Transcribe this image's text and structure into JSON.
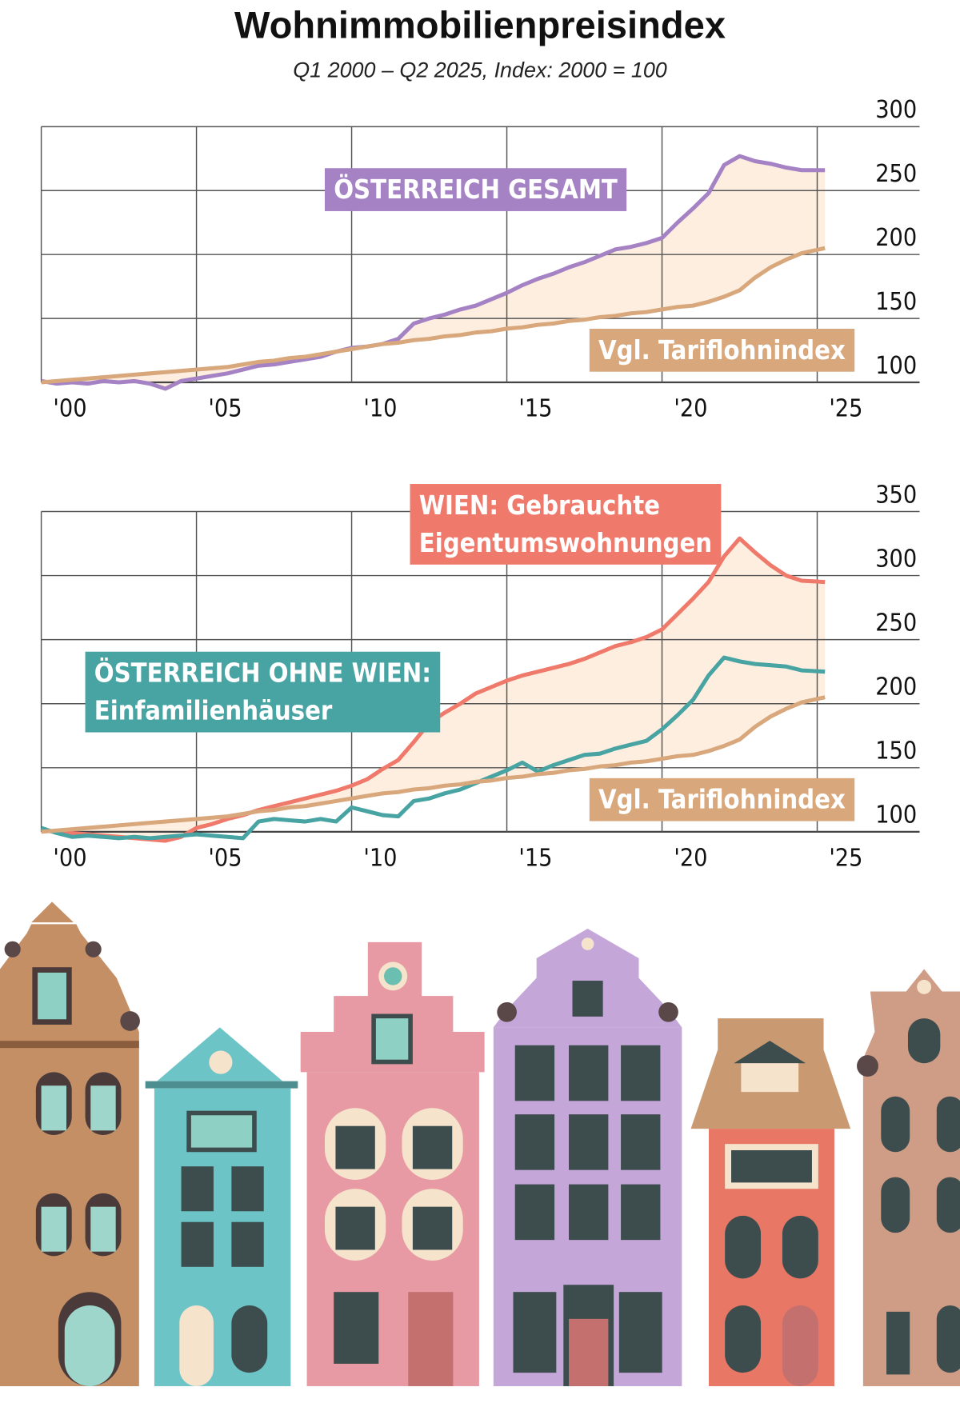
{
  "header": {
    "title": "Wohnimmobilienpreisindex",
    "subtitle": "Q1 2000 – Q2 2025, Index: 2000 = 100"
  },
  "chart_data": [
    {
      "type": "line",
      "x": [
        2000,
        2000.5,
        2001,
        2001.5,
        2002,
        2002.5,
        2003,
        2003.5,
        2004,
        2004.5,
        2005,
        2005.5,
        2006,
        2006.5,
        2007,
        2007.5,
        2008,
        2008.5,
        2009,
        2009.5,
        2010,
        2010.5,
        2011,
        2011.5,
        2012,
        2012.5,
        2013,
        2013.5,
        2014,
        2014.5,
        2015,
        2015.5,
        2016,
        2016.5,
        2017,
        2017.5,
        2018,
        2018.5,
        2019,
        2019.5,
        2020,
        2020.5,
        2021,
        2021.5,
        2022,
        2022.5,
        2023,
        2023.5,
        2024,
        2024.5,
        2025.25
      ],
      "series": [
        {
          "name": "ÖSTERREICH GESAMT",
          "color": "#a482c4",
          "values": [
            101,
            99,
            100,
            99,
            101,
            100,
            101,
            99,
            95,
            101,
            103,
            105,
            107,
            110,
            113,
            114,
            116,
            118,
            120,
            124,
            127,
            128,
            130,
            134,
            146,
            150,
            153,
            157,
            160,
            165,
            170,
            176,
            181,
            185,
            190,
            194,
            199,
            204,
            206,
            209,
            213,
            225,
            236,
            248,
            270,
            277,
            273,
            271,
            268,
            266,
            266
          ]
        },
        {
          "name": "Vgl. Tariflohnindex",
          "color": "#d9a77c",
          "values": [
            100,
            101,
            102,
            103,
            104,
            105,
            106,
            107,
            108,
            109,
            110,
            111,
            112,
            114,
            116,
            117,
            119,
            120,
            122,
            124,
            126,
            128,
            130,
            131,
            133,
            134,
            136,
            137,
            139,
            140,
            142,
            143,
            145,
            146,
            148,
            149,
            151,
            152,
            154,
            155,
            157,
            159,
            160,
            163,
            167,
            172,
            182,
            190,
            196,
            201,
            205
          ]
        }
      ],
      "xlim": [
        2000,
        2028.3
      ],
      "xticks": [
        {
          "value": 2000,
          "label": "'00"
        },
        {
          "value": 2005,
          "label": "'05"
        },
        {
          "value": 2010,
          "label": "'10"
        },
        {
          "value": 2015,
          "label": "'15"
        },
        {
          "value": 2020,
          "label": "'20"
        },
        {
          "value": 2025,
          "label": "'25"
        }
      ],
      "ylim": [
        100,
        300
      ],
      "yticks": [
        100,
        150,
        200,
        250,
        300
      ],
      "grid": true
    },
    {
      "type": "line",
      "x": [
        2000,
        2000.5,
        2001,
        2001.5,
        2002,
        2002.5,
        2003,
        2003.5,
        2004,
        2004.5,
        2005,
        2005.5,
        2006,
        2006.5,
        2007,
        2007.5,
        2008,
        2008.5,
        2009,
        2009.5,
        2010,
        2010.5,
        2011,
        2011.5,
        2012,
        2012.5,
        2013,
        2013.5,
        2014,
        2014.5,
        2015,
        2015.5,
        2016,
        2016.5,
        2017,
        2017.5,
        2018,
        2018.5,
        2019,
        2019.5,
        2020,
        2020.5,
        2021,
        2021.5,
        2022,
        2022.5,
        2023,
        2023.5,
        2024,
        2024.5,
        2025.25
      ],
      "series": [
        {
          "name": "WIEN: Gebrauchte\nEigentumswohnungen",
          "color": "#ef7a6b",
          "values": [
            101,
            100,
            99,
            98,
            97,
            96,
            95,
            94,
            93,
            96,
            103,
            106,
            110,
            113,
            117,
            120,
            123,
            126,
            129,
            132,
            136,
            141,
            149,
            156,
            170,
            185,
            193,
            200,
            208,
            213,
            218,
            222,
            225,
            228,
            231,
            235,
            240,
            245,
            248,
            252,
            258,
            270,
            282,
            295,
            315,
            329,
            318,
            308,
            300,
            296,
            295
          ]
        },
        {
          "name": "ÖSTERREICH OHNE WIEN:\nEinfamilienhäuser",
          "color": "#48a3a3",
          "values": [
            103,
            99,
            96,
            97,
            96,
            95,
            96,
            95,
            96,
            97,
            98,
            97,
            96,
            95,
            108,
            110,
            109,
            108,
            110,
            108,
            119,
            116,
            113,
            112,
            124,
            126,
            130,
            133,
            138,
            143,
            148,
            154,
            147,
            152,
            156,
            160,
            161,
            165,
            168,
            171,
            180,
            191,
            203,
            222,
            236,
            233,
            231,
            230,
            229,
            226,
            225
          ]
        },
        {
          "name": "Vgl. Tariflohnindex",
          "color": "#d9a77c",
          "values": [
            100,
            101,
            102,
            103,
            104,
            105,
            106,
            107,
            108,
            109,
            110,
            111,
            112,
            114,
            116,
            117,
            119,
            120,
            122,
            124,
            126,
            128,
            130,
            131,
            133,
            134,
            136,
            137,
            139,
            140,
            142,
            143,
            145,
            146,
            148,
            149,
            151,
            152,
            154,
            155,
            157,
            159,
            160,
            163,
            167,
            172,
            182,
            190,
            196,
            201,
            205
          ]
        }
      ],
      "xlim": [
        2000,
        2028.3
      ],
      "xticks": [
        {
          "value": 2000,
          "label": "'00"
        },
        {
          "value": 2005,
          "label": "'05"
        },
        {
          "value": 2010,
          "label": "'10"
        },
        {
          "value": 2015,
          "label": "'15"
        },
        {
          "value": 2020,
          "label": "'20"
        },
        {
          "value": 2025,
          "label": "'25"
        }
      ],
      "ylim": [
        100,
        350
      ],
      "yticks": [
        100,
        150,
        200,
        250,
        300,
        350
      ],
      "grid": true
    }
  ]
}
